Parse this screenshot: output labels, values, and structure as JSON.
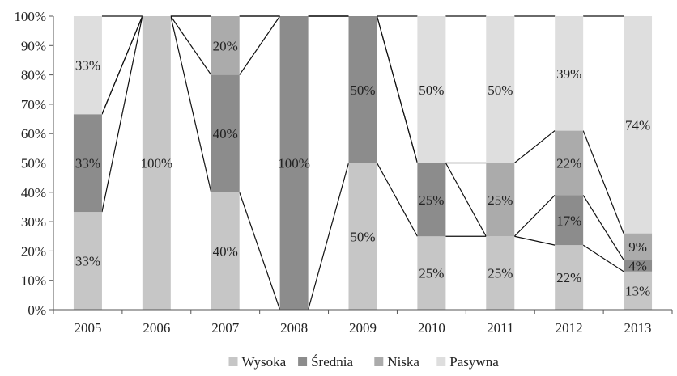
{
  "chart_data": {
    "type": "bar",
    "stacked": true,
    "percent": true,
    "categories": [
      "2005",
      "2006",
      "2007",
      "2008",
      "2009",
      "2010",
      "2011",
      "2012",
      "2013"
    ],
    "series": [
      {
        "name": "Wysoka",
        "color": "#c6c6c6",
        "values": [
          33.3,
          100,
          40,
          0,
          50,
          25,
          25,
          22,
          13
        ],
        "labels": [
          "33%",
          "100%",
          "40%",
          "",
          "50%",
          "25%",
          "25%",
          "22%",
          "13%"
        ]
      },
      {
        "name": "Średnia",
        "color": "#8c8c8c",
        "values": [
          33.3,
          0,
          40,
          100,
          50,
          25,
          0,
          17,
          4
        ],
        "labels": [
          "33%",
          "",
          "40%",
          "100%",
          "50%",
          "25%",
          "",
          "17%",
          "4%"
        ]
      },
      {
        "name": "Niska",
        "color": "#ababab",
        "values": [
          0,
          0,
          20,
          0,
          0,
          0,
          25,
          22,
          9
        ],
        "labels": [
          "",
          "",
          "20%",
          "",
          "",
          "",
          "25%",
          "22%",
          "9%"
        ]
      },
      {
        "name": "Pasywna",
        "color": "#dedede",
        "values": [
          33.4,
          0,
          0,
          0,
          0,
          50,
          50,
          39,
          74
        ],
        "labels": [
          "33%",
          "",
          "",
          "",
          "",
          "50%",
          "50%",
          "39%",
          "74%"
        ]
      }
    ],
    "y_ticks": [
      "0%",
      "10%",
      "20%",
      "30%",
      "40%",
      "50%",
      "60%",
      "70%",
      "80%",
      "90%",
      "100%"
    ],
    "ylim": [
      0,
      100
    ],
    "series_lines": true,
    "grid": false,
    "legend_position": "bottom"
  }
}
